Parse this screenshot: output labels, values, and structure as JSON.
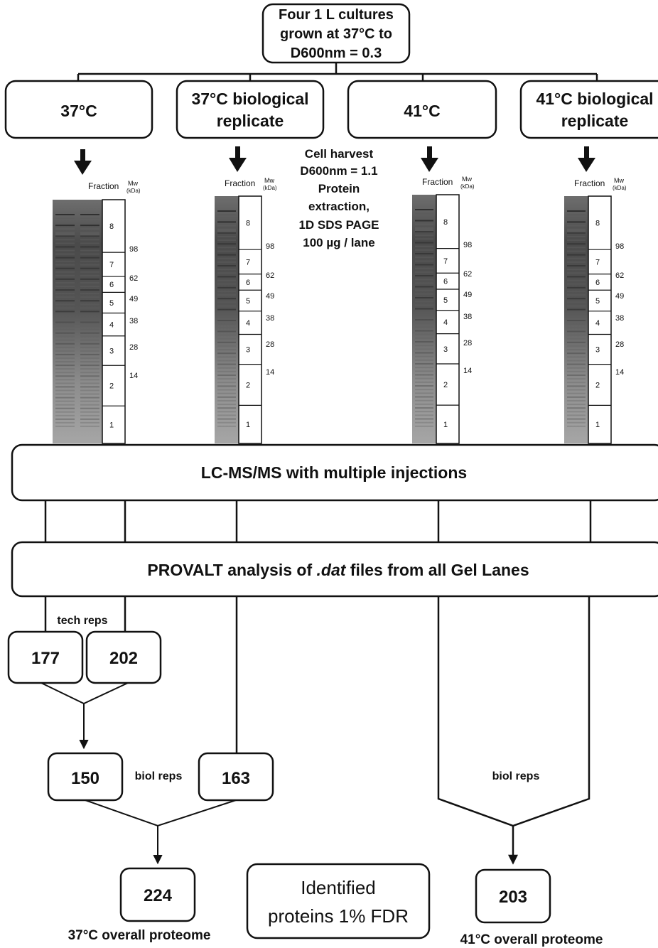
{
  "top_box": {
    "line1": "Four 1 L cultures",
    "line2": "grown at 37°C to",
    "line3": "D600nm = 0.3"
  },
  "conditions": [
    {
      "line1": "37°C",
      "line2": ""
    },
    {
      "line1": "37°C biological",
      "line2": "replicate"
    },
    {
      "line1": "41°C",
      "line2": ""
    },
    {
      "line1": "41°C biological",
      "line2": "replicate"
    }
  ],
  "harvest_note": [
    "Cell harvest",
    "D600nm  = 1.1",
    "Protein",
    "extraction,",
    "1D SDS PAGE",
    "100 µg / lane"
  ],
  "gel": {
    "fraction_label": "Fraction",
    "mw_label": "Mw",
    "mw_unit": "(kDa)",
    "fractions": [
      "8",
      "7",
      "6",
      "5",
      "4",
      "3",
      "2",
      "1"
    ],
    "markers": [
      "98",
      "62",
      "49",
      "38",
      "28",
      "14"
    ]
  },
  "lcms_label": "LC-MS/MS with multiple injections",
  "provalt": {
    "before": "PROVALT analysis of ",
    "italic": ".dat",
    "after": " files from all Gel Lanes"
  },
  "tech_reps_label": "tech reps",
  "tech_counts": [
    "177",
    "202"
  ],
  "biol_counts": [
    "150",
    "163"
  ],
  "biol_reps_label": "biol reps",
  "overall_counts": [
    "224",
    "203"
  ],
  "legend_box": {
    "line1": "Identified",
    "line2": "proteins 1% FDR"
  },
  "overall_labels": [
    "37°C overall proteome",
    "41°C overall proteome"
  ],
  "colors": {
    "stroke": "#111111",
    "gel_dark": "#3a3a3a",
    "gel_light": "#9a9a9a"
  }
}
